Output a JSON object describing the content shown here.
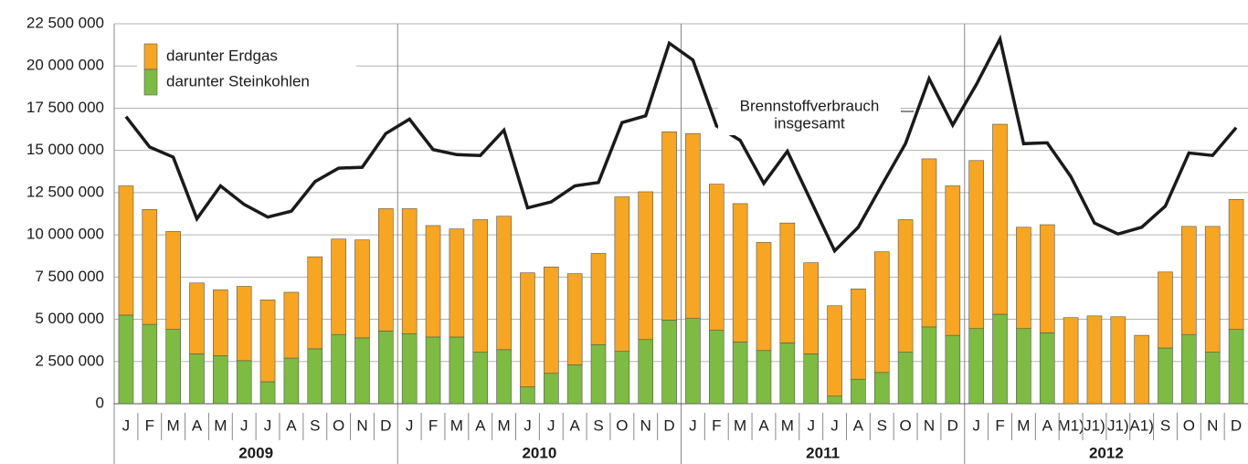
{
  "chart_data": {
    "type": "bar",
    "stacked": true,
    "categories": [
      "J",
      "F",
      "M",
      "A",
      "M",
      "J",
      "J",
      "A",
      "S",
      "O",
      "N",
      "D",
      "J",
      "F",
      "M",
      "A",
      "M",
      "J",
      "J",
      "A",
      "S",
      "O",
      "N",
      "D",
      "J",
      "F",
      "M",
      "A",
      "M",
      "J",
      "J",
      "A",
      "S",
      "O",
      "N",
      "D",
      "J",
      "F",
      "M",
      "A",
      "M1)",
      "J1)",
      "J1)",
      "A1)",
      "S",
      "O",
      "N",
      "D"
    ],
    "groups": [
      "2009",
      "2010",
      "2011",
      "2012"
    ],
    "series": [
      {
        "name": "darunter Steinkohlen",
        "color": "#7dbb42",
        "values": [
          5250000,
          4700000,
          4400000,
          2950000,
          2850000,
          2550000,
          1300000,
          2700000,
          3250000,
          4100000,
          3900000,
          4300000,
          4150000,
          3950000,
          3950000,
          3050000,
          3200000,
          1000000,
          1800000,
          2300000,
          3500000,
          3100000,
          3800000,
          4950000,
          5050000,
          4350000,
          3650000,
          3150000,
          3600000,
          2950000,
          450000,
          1450000,
          1850000,
          3050000,
          4550000,
          4050000,
          4450000,
          5300000,
          4450000,
          4200000,
          null,
          null,
          null,
          null,
          3300000,
          4100000,
          3050000,
          4400000
        ]
      },
      {
        "name": "darunter Erdgas",
        "color": "#f6a623",
        "values": [
          7650000,
          6800000,
          5800000,
          4200000,
          3900000,
          4400000,
          4850000,
          3900000,
          5450000,
          5650000,
          5800000,
          7250000,
          7400000,
          6600000,
          6400000,
          7850000,
          7900000,
          6750000,
          6300000,
          5400000,
          5400000,
          9150000,
          8750000,
          11150000,
          10950000,
          8650000,
          8200000,
          6400000,
          7100000,
          5400000,
          5350000,
          5350000,
          7150000,
          7850000,
          9950000,
          8850000,
          9950000,
          11250000,
          6000000,
          6400000,
          5100000,
          5200000,
          5150000,
          4050000,
          4500000,
          6400000,
          7450000,
          7700000
        ]
      }
    ],
    "line": {
      "color": "#1a1a1a",
      "values": [
        17000000,
        15200000,
        14600000,
        10950000,
        12900000,
        11800000,
        11050000,
        11400000,
        13150000,
        13950000,
        14000000,
        16000000,
        16850000,
        15050000,
        14750000,
        14700000,
        16200000,
        11600000,
        11950000,
        12900000,
        13100000,
        16650000,
        17050000,
        21350000,
        20350000,
        16450000,
        15600000,
        13050000,
        14950000,
        12000000,
        9050000,
        10450000,
        12950000,
        15400000,
        19250000,
        16500000,
        18900000,
        21600000,
        15400000,
        15450000,
        13450000,
        10700000,
        10050000,
        10450000,
        11700000,
        14850000,
        14700000,
        16350000
      ]
    },
    "annotation": [
      "Brennstoffverbrauch",
      "insgesamt"
    ],
    "ylim": [
      0,
      22500000
    ],
    "yticks": [
      0,
      {
        "value": 2500000,
        "label": "2 500 000"
      },
      {
        "value": 5000000,
        "label": "5 000 000"
      },
      {
        "value": 7500000,
        "label": "7 500 000"
      },
      {
        "value": 10000000,
        "label": "10 000 000"
      },
      {
        "value": 12500000,
        "label": "12 500 000"
      },
      {
        "value": 15000000,
        "label": "15 000 000"
      },
      {
        "value": 17500000,
        "label": "17 500 000"
      },
      {
        "value": 20000000,
        "label": "20 000 000"
      },
      {
        "value": 22500000,
        "label": "22 500 000"
      }
    ],
    "grid": true
  }
}
